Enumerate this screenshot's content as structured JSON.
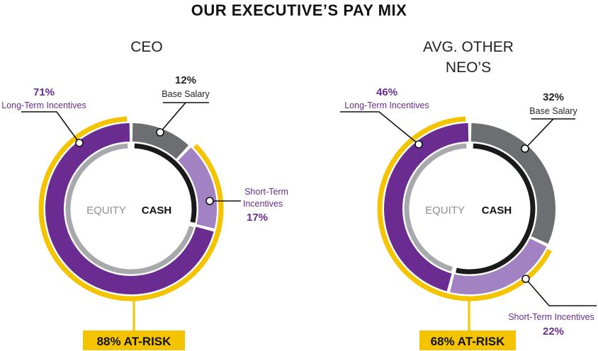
{
  "page": {
    "title": "OUR EXECUTIVE’S PAY MIX"
  },
  "colors": {
    "long_term": "#6a2c91",
    "short_term": "#a382c3",
    "base_salary": "#6d6e71",
    "equity_ring": "#a7a9ac",
    "cash_ring": "#1a1a1a",
    "at_risk": "#f5c400",
    "label_line": "#111111"
  },
  "chart_data": [
    {
      "type": "pie",
      "title": "CEO",
      "title_lines": [
        "CEO"
      ],
      "categories": [
        "Base Salary",
        "Short-Term Incentives",
        "Long-Term Incentives"
      ],
      "values": [
        12,
        17,
        71
      ],
      "labels": {
        "base_salary": {
          "pct": "12%",
          "lines": [
            "Base Salary"
          ]
        },
        "short_term": {
          "pct": "17%",
          "lines": [
            "Short-Term",
            "Incentives"
          ]
        },
        "long_term": {
          "pct": "71%",
          "lines": [
            "Long-Term Incentives"
          ]
        }
      },
      "inner_labels": {
        "equity": "EQUITY",
        "cash": "CASH"
      },
      "at_risk": {
        "value": 88,
        "label": "88% AT-RISK"
      }
    },
    {
      "type": "pie",
      "title": "AVG. OTHER NEO’S",
      "title_lines": [
        "AVG. OTHER",
        "NEO’S"
      ],
      "categories": [
        "Base Salary",
        "Short-Term Incentives",
        "Long-Term Incentives"
      ],
      "values": [
        32,
        22,
        46
      ],
      "labels": {
        "base_salary": {
          "pct": "32%",
          "lines": [
            "Base Salary"
          ]
        },
        "short_term": {
          "pct": "22%",
          "lines": [
            "Short-Term Incentives"
          ]
        },
        "long_term": {
          "pct": "46%",
          "lines": [
            "Long-Term Incentives"
          ]
        }
      },
      "inner_labels": {
        "equity": "EQUITY",
        "cash": "CASH"
      },
      "at_risk": {
        "value": 68,
        "label": "68% AT-RISK"
      }
    }
  ]
}
